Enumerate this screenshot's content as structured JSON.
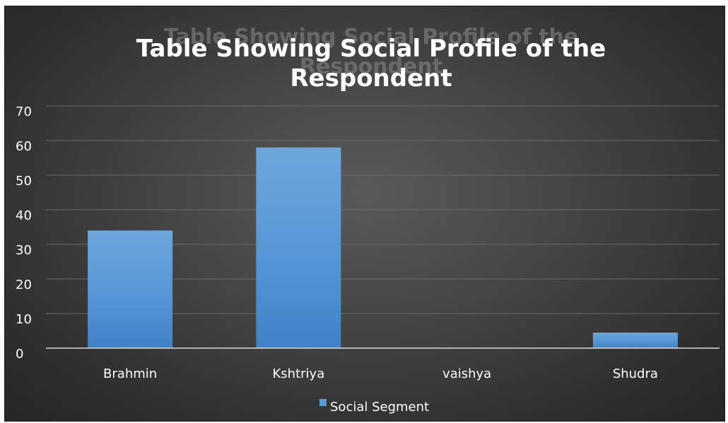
{
  "chart_data": {
    "type": "bar",
    "title": "Table Showing Social  Profile of the Respondent",
    "title_lines": [
      "Table Showing Social  Profile of the",
      "Respondent"
    ],
    "categories": [
      "Brahmin",
      "Kshtriya",
      "vaishya",
      "Shudra"
    ],
    "series": [
      {
        "name": "Social Segment",
        "values": [
          34,
          58,
          0,
          4.5
        ],
        "color": "#5b9bd5"
      }
    ],
    "ylim": [
      0,
      70
    ],
    "yticks": [
      0,
      10,
      20,
      30,
      40,
      50,
      60,
      70
    ],
    "grid": true,
    "legend": "bottom"
  }
}
